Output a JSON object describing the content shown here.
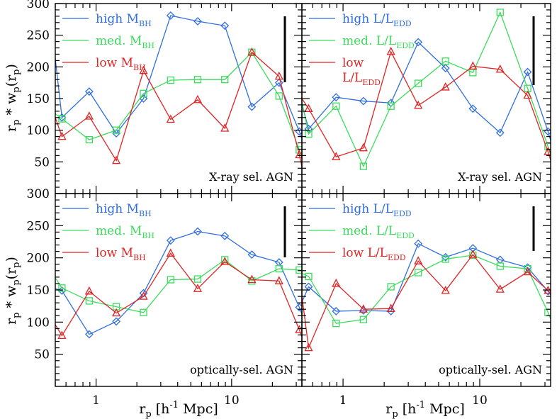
{
  "figure": {
    "y_axis_label_main": "r",
    "y_axis_label_sub_p": "p",
    "y_axis_label_mid": " * w",
    "y_axis_label_paren_open": "(r",
    "y_axis_label_paren_close": ")",
    "x_axis_label_main": "r",
    "x_axis_label_sub": "p",
    "x_axis_label_rest": " [h",
    "x_axis_label_sup": "-1",
    "x_axis_label_end": " Mpc]"
  },
  "colors": {
    "blue": "#2f6ee0",
    "green": "#3bdc5c",
    "red": "#e02424",
    "axis": "#000000"
  },
  "chart_data": [
    {
      "type": "line",
      "panel": "top-left",
      "annotation": "X-ray sel. AGN",
      "x_scale": "log",
      "xlim": [
        0.5,
        33
      ],
      "ylim": [
        0,
        300
      ],
      "yticks": [
        50,
        100,
        150,
        200,
        250,
        300
      ],
      "xtick_labels": [
        "1",
        "10"
      ],
      "legend_position": "top-left",
      "series": [
        {
          "name": "high M",
          "name_sub": "BH",
          "color": "blue",
          "marker": "diamond",
          "x": [
            0.56,
            0.89,
            1.41,
            2.24,
            3.55,
            5.62,
            8.91,
            14.1,
            22.4,
            31.6
          ],
          "y": [
            120,
            161,
            95,
            150,
            281,
            272,
            265,
            137,
            175,
            98
          ],
          "start_y": 213
        },
        {
          "name": "med. M",
          "name_sub": "BH",
          "color": "green",
          "marker": "square",
          "x": [
            0.56,
            0.89,
            1.41,
            2.24,
            3.55,
            5.62,
            8.91,
            14.1,
            22.4,
            31.6
          ],
          "y": [
            118,
            85,
            100,
            158,
            179,
            180,
            180,
            223,
            154,
            69
          ],
          "start_y": 126
        },
        {
          "name": "low M",
          "name_sub": "BH",
          "color": "red",
          "marker": "triangle",
          "x": [
            0.56,
            0.89,
            1.41,
            2.24,
            3.55,
            5.62,
            8.91,
            14.1,
            22.4,
            31.6
          ],
          "y": [
            90,
            122,
            52,
            194,
            117,
            148,
            103,
            223,
            185,
            61
          ],
          "start_y": 120
        }
      ],
      "error_bar_length": 93
    },
    {
      "type": "line",
      "panel": "top-right",
      "annotation": "X-ray sel. AGN",
      "x_scale": "log",
      "xlim": [
        0.5,
        33
      ],
      "ylim": [
        0,
        300
      ],
      "xtick_labels": [
        "1",
        "10"
      ],
      "legend_position": "top-left",
      "series": [
        {
          "name": "high L/L",
          "name_sub": "EDD",
          "color": "blue",
          "marker": "diamond",
          "x": [
            0.56,
            0.89,
            1.41,
            2.24,
            3.55,
            5.62,
            8.91,
            14.1,
            22.4,
            31.6
          ],
          "y": [
            102,
            152,
            146,
            143,
            239,
            198,
            134,
            96,
            192,
            98
          ],
          "start_y": 141
        },
        {
          "name": "med. L/L",
          "name_sub": "EDD",
          "color": "green",
          "marker": "square",
          "x": [
            0.56,
            0.89,
            1.41,
            2.24,
            3.55,
            5.62,
            8.91,
            14.1,
            22.4,
            31.6
          ],
          "y": [
            94,
            138,
            43,
            138,
            174,
            209,
            191,
            286,
            166,
            74
          ],
          "start_y": 145
        },
        {
          "name": "low",
          "name_line2": "L/L",
          "name_sub": "EDD",
          "color": "red",
          "marker": "triangle",
          "x": [
            0.56,
            0.89,
            1.41,
            2.24,
            3.55,
            5.62,
            8.91,
            14.1,
            22.4,
            31.6
          ],
          "y": [
            134,
            58,
            72,
            224,
            139,
            168,
            201,
            196,
            155,
            66
          ],
          "start_y": 150
        }
      ],
      "error_bar_length": 97
    },
    {
      "type": "line",
      "panel": "bottom-left",
      "annotation": "optically-sel. AGN",
      "x_scale": "log",
      "xlim": [
        0.5,
        33
      ],
      "ylim": [
        0,
        300
      ],
      "yticks": [
        50,
        100,
        150,
        200,
        250,
        300
      ],
      "xtick_labels": [
        "1",
        "10"
      ],
      "legend_position": "top-left",
      "series": [
        {
          "name": "high M",
          "name_sub": "BH",
          "color": "blue",
          "marker": "diamond",
          "x": [
            0.56,
            0.89,
            1.41,
            2.24,
            3.55,
            5.62,
            8.91,
            14.1,
            22.4,
            31.6
          ],
          "y": [
            149,
            81,
            101,
            145,
            227,
            241,
            234,
            205,
            193,
            123
          ],
          "start_y": 152
        },
        {
          "name": "med. M",
          "name_sub": "BH",
          "color": "green",
          "marker": "square",
          "x": [
            0.56,
            0.89,
            1.41,
            2.24,
            3.55,
            5.62,
            8.91,
            14.1,
            22.4,
            31.6
          ],
          "y": [
            153,
            133,
            124,
            115,
            166,
            167,
            197,
            164,
            183,
            181
          ],
          "start_y": 169
        },
        {
          "name": "low M",
          "name_sub": "BH",
          "color": "red",
          "marker": "triangle",
          "x": [
            0.56,
            0.89,
            1.41,
            2.24,
            3.55,
            5.62,
            8.91,
            14.1,
            22.4,
            31.6
          ],
          "y": [
            79,
            148,
            114,
            140,
            207,
            152,
            194,
            166,
            164,
            88
          ],
          "start_y": 96
        }
      ],
      "error_bar_length": 72
    },
    {
      "type": "line",
      "panel": "bottom-right",
      "annotation": "optically-sel. AGN",
      "x_scale": "log",
      "xlim": [
        0.5,
        33
      ],
      "ylim": [
        0,
        300
      ],
      "xtick_labels": [
        "1",
        "10"
      ],
      "legend_position": "top-left",
      "series": [
        {
          "name": "high L/L",
          "name_sub": "EDD",
          "color": "blue",
          "marker": "diamond",
          "x": [
            0.56,
            0.89,
            1.41,
            2.24,
            3.55,
            5.62,
            8.91,
            14.1,
            22.4,
            31.6
          ],
          "y": [
            155,
            117,
            118,
            117,
            222,
            201,
            215,
            197,
            185,
            148
          ],
          "start_y": 131
        },
        {
          "name": "med. L/L",
          "name_sub": "EDD",
          "color": "green",
          "marker": "square",
          "x": [
            0.56,
            0.89,
            1.41,
            2.24,
            3.55,
            5.62,
            8.91,
            14.1,
            22.4,
            31.6
          ],
          "y": [
            171,
            98,
            104,
            155,
            177,
            198,
            204,
            187,
            183,
            115
          ],
          "start_y": 176
        },
        {
          "name": "low L/L",
          "name_sub": "EDD",
          "color": "red",
          "marker": "triangle",
          "x": [
            0.56,
            0.89,
            1.41,
            2.24,
            3.55,
            5.62,
            8.91,
            14.1,
            22.4,
            31.6
          ],
          "y": [
            60,
            160,
            120,
            121,
            195,
            149,
            205,
            151,
            178,
            149
          ],
          "start_y": 141
        }
      ],
      "error_bar_length": 63
    }
  ]
}
